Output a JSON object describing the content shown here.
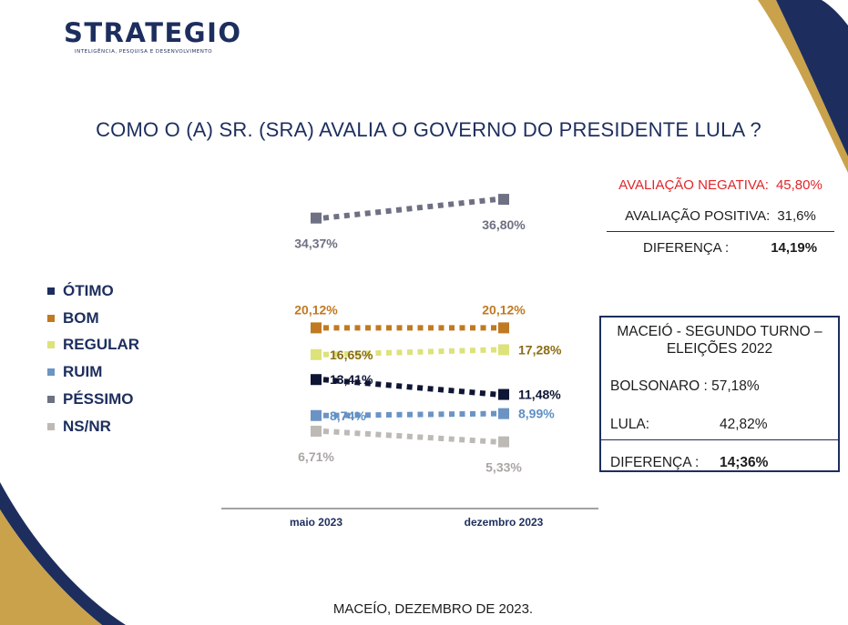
{
  "brand": {
    "name": "STRATEGIO",
    "tagline": "INTELIGÊNCIA, PESQUISA E DESENVOLVIMENTO"
  },
  "title": "COMO O (A) SR. (SRA) AVALIA O GOVERNO DO PRESIDENTE LULA ?",
  "footer": "MACEÍO, DEZEMBRO DE 2023.",
  "summary": {
    "negative_label": "AVALIAÇÃO NEGATIVA:",
    "negative_value": "45,80%",
    "positive_label": "AVALIAÇÃO POSITIVA:",
    "positive_value": "31,6%",
    "difference_label": "DIFERENÇA :",
    "difference_value": "14,19%"
  },
  "election": {
    "title": "MACEIÓ - SEGUNDO TURNO – ELEIÇÕES 2022",
    "bolsonaro_label": "BOLSONARO :",
    "bolsonaro_value": "57,18%",
    "lula_label": "LULA:",
    "lula_value": "42,82%",
    "difference_label": "DIFERENÇA :",
    "difference_value": "14;36%"
  },
  "colors": {
    "navy": "#1d2e5e",
    "gold": "#c9a24b",
    "negative": "#e0262a"
  },
  "chart_data": {
    "type": "line",
    "categories": [
      "maio 2023",
      "dezembro 2023"
    ],
    "series": [
      {
        "name": "ÓTIMO",
        "values": [
          13.41,
          11.48
        ],
        "labels": [
          "13,41%",
          "11,48%"
        ],
        "color": "#0f1535",
        "label_color": "#0f1535"
      },
      {
        "name": "BOM",
        "values": [
          20.12,
          20.12
        ],
        "labels": [
          "20,12%",
          "20,12%"
        ],
        "color": "#c07a22",
        "label_color": "#c07a22"
      },
      {
        "name": "REGULAR",
        "values": [
          16.65,
          17.28
        ],
        "labels": [
          "16,65%",
          "17,28%"
        ],
        "color": "#dde27a",
        "label_color": "#8a6d16"
      },
      {
        "name": "RUIM",
        "values": [
          8.74,
          8.99
        ],
        "labels": [
          "8,74%",
          "8,99%"
        ],
        "color": "#6b94c4",
        "label_color": "#5e8fc4"
      },
      {
        "name": "PÉSSIMO",
        "values": [
          34.37,
          36.8
        ],
        "labels": [
          "34,37%",
          "36,80%"
        ],
        "color": "#6e7083",
        "label_color": "#6e7083"
      },
      {
        "name": "NS/NR",
        "values": [
          6.71,
          5.33
        ],
        "labels": [
          "6,71%",
          "5,33%"
        ],
        "color": "#bdbab6",
        "label_color": "#a9a6a3"
      }
    ],
    "legend_position": "left",
    "grid": false
  }
}
